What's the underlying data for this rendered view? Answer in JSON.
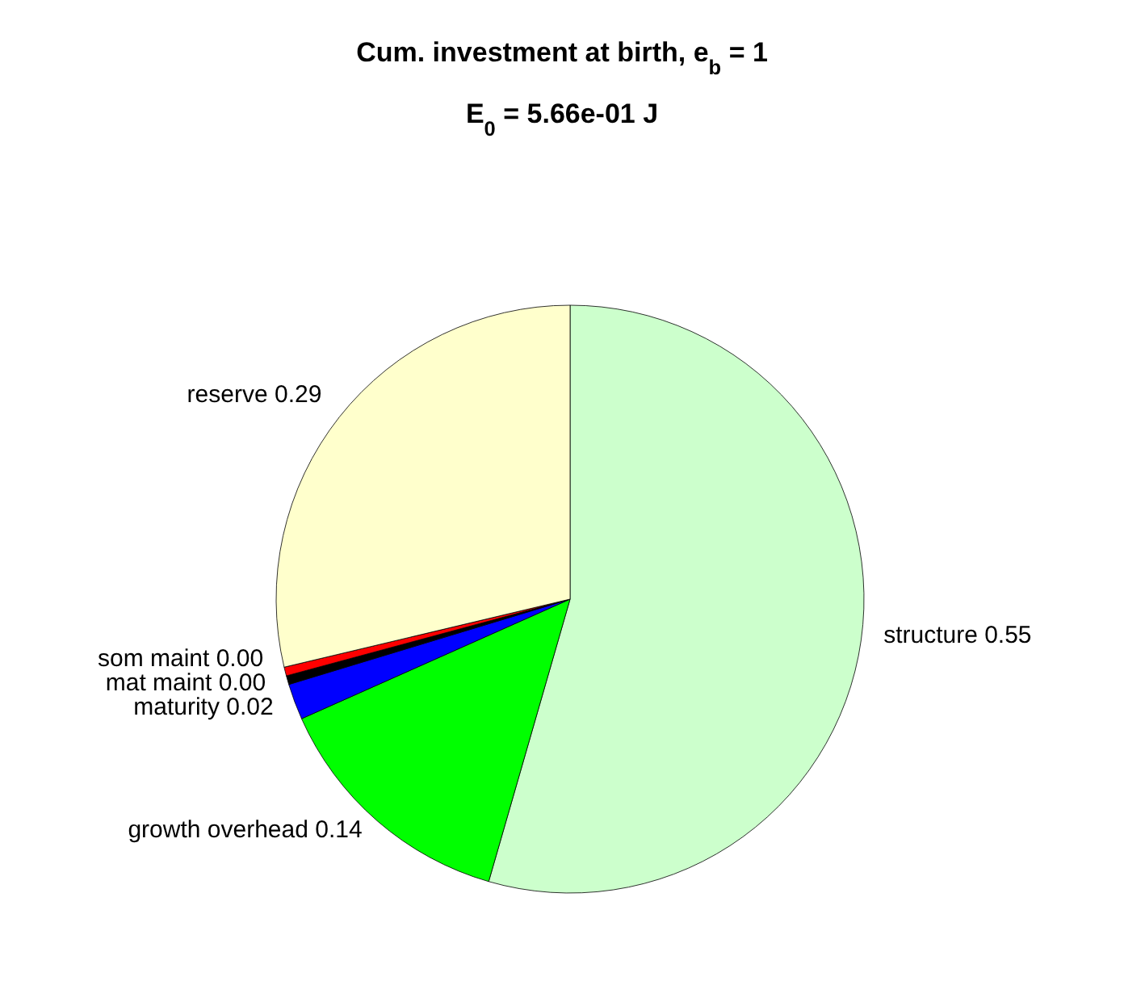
{
  "chart_data": {
    "type": "pie",
    "title": "Cum. investment at birth, e$_{b}$ = 1",
    "subtitle": "E$_{0}$ = 5.66e-01 J",
    "categories": [
      "structure",
      "growth overhead",
      "maturity",
      "mat maint",
      "som maint",
      "reserve"
    ],
    "values": [
      0.55,
      0.14,
      0.02,
      0.0049,
      0.0049,
      0.29
    ],
    "value_labels": [
      "0.55",
      "0.14",
      "0.02",
      "0.00",
      "0.00",
      "0.29"
    ],
    "colors": [
      "#ccffcc",
      "#00ff00",
      "#0000ff",
      "#000000",
      "#ff0000",
      "#ffffcc"
    ],
    "legend": false
  }
}
